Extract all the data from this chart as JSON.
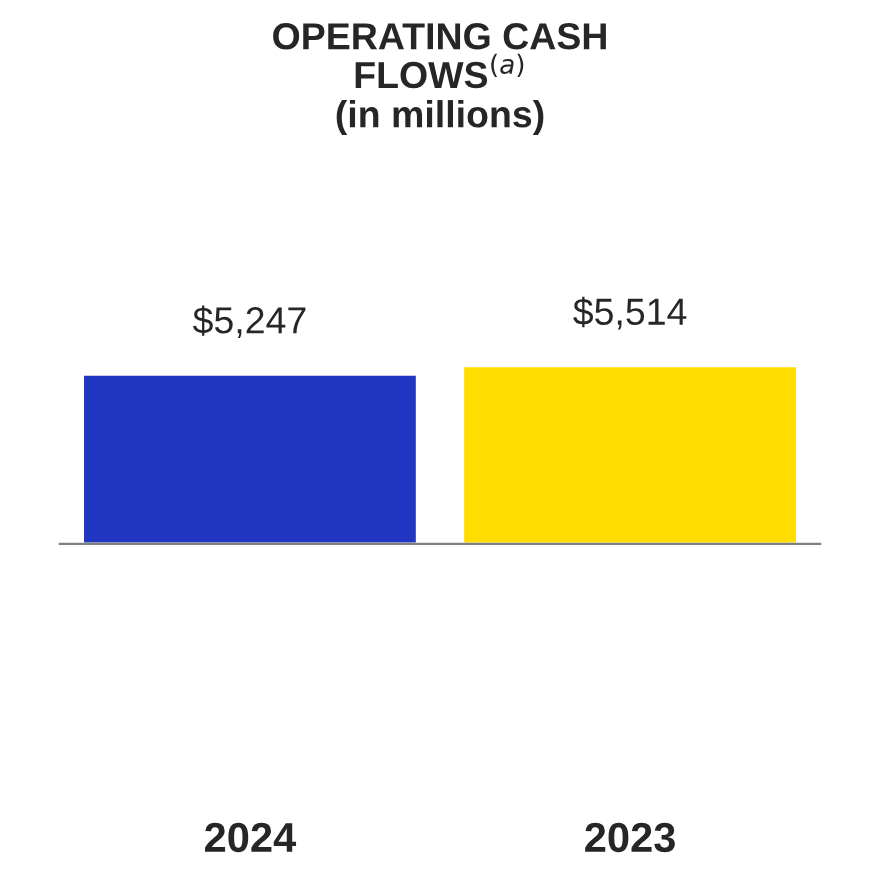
{
  "chart_data": {
    "type": "bar",
    "title": "OPERATING CASH\nFLOWS$^{(a)}$\n(in millions)",
    "categories": [
      "2024",
      "2023"
    ],
    "values": [
      5247,
      5514
    ],
    "colors": [
      "#2136c2",
      "#ffdd00"
    ],
    "value_labels": [
      "$5,247",
      "$5,514"
    ],
    "tick_labels": "x",
    "grid": false,
    "legend": false
  }
}
